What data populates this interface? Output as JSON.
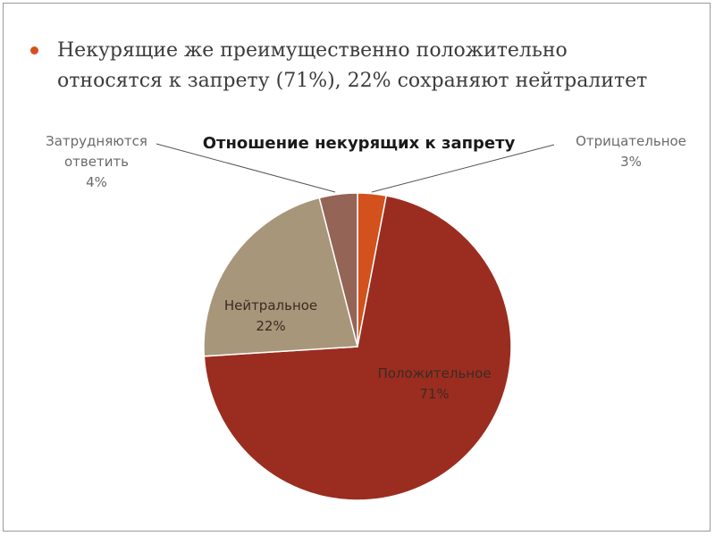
{
  "slide": {
    "bullet_line1": "Некурящие же преимущественно положительно",
    "bullet_line2": "относятся к запрету (71%), 22% сохраняют нейтралитет"
  },
  "chart_data": {
    "type": "pie",
    "title": "Отношение некурящих к запрету",
    "slices": [
      {
        "name": "Отрицательное",
        "value": 3,
        "label": "3%",
        "color": "#d2511c"
      },
      {
        "name": "Положительное",
        "value": 71,
        "label": "71%",
        "color": "#9b2d20"
      },
      {
        "name": "Нейтральное",
        "value": 22,
        "label": "22%",
        "color": "#a8967a"
      },
      {
        "name": "Затрудняются ответить",
        "value": 4,
        "label": "4%",
        "color": "#946456"
      }
    ],
    "start_angle_deg": 0,
    "direction": "clockwise",
    "legend": "none",
    "data_labels": "category name and percentage"
  }
}
